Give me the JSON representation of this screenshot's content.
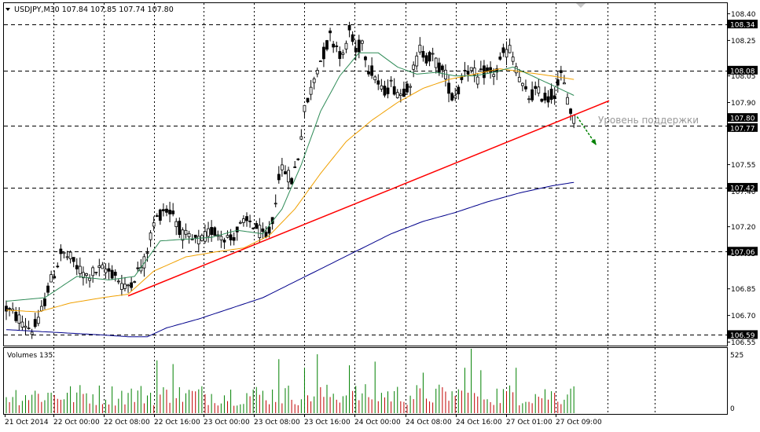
{
  "header": {
    "symbol_line": "USDJPY,M30  107.84 107.85 107.74 107.80"
  },
  "annotation": {
    "support_label": "Уровень поддержки"
  },
  "volume_panel": {
    "label": "Volumes 135",
    "max_label": "525",
    "zero_label": "0"
  },
  "colors": {
    "background": "#ffffff",
    "frame": "#000000",
    "bull": "#008000",
    "bear": "#c00000",
    "ma_fast": "#2e8b57",
    "ma_mid": "#f0a000",
    "ma_slow": "#00008b",
    "trendline": "#ff0000",
    "arrow": "#008000",
    "label_box": "#000000",
    "annotation": "#999999"
  },
  "chart_data": [
    {
      "type": "candlestick",
      "symbol": "USDJPY",
      "timeframe": "M30",
      "ohlc_header": {
        "open": 107.84,
        "high": 107.85,
        "low": 107.74,
        "close": 107.8
      },
      "ylim": [
        106.53,
        108.46
      ],
      "y_ticks": [
        "108.40",
        "108.25",
        "108.05",
        "107.90",
        "107.75",
        "107.55",
        "107.40",
        "107.20",
        "107.05",
        "106.85",
        "106.70",
        "106.55"
      ],
      "horizontal_levels": [
        "108.34",
        "108.08",
        "107.77",
        "107.42",
        "107.06",
        "106.59"
      ],
      "price_labels": [
        "108.34",
        "108.08",
        "107.80",
        "107.77",
        "107.42",
        "107.06",
        "106.59"
      ],
      "x_tick_labels": [
        "21 Oct 2014",
        "22 Oct 00:00",
        "22 Oct 08:00",
        "22 Oct 16:00",
        "23 Oct 00:00",
        "23 Oct 08:00",
        "23 Oct 16:00",
        "24 Oct 00:00",
        "24 Oct 08:00",
        "24 Oct 16:00",
        "27 Oct 01:00",
        "27 Oct 09:00"
      ],
      "price_anchors": [
        [
          0,
          106.74
        ],
        [
          4,
          106.68
        ],
        [
          8,
          106.62
        ],
        [
          10,
          106.66
        ],
        [
          13,
          106.85
        ],
        [
          15,
          106.94
        ],
        [
          17,
          107.05
        ],
        [
          20,
          107.02
        ],
        [
          22,
          106.97
        ],
        [
          25,
          106.92
        ],
        [
          28,
          106.95
        ],
        [
          31,
          106.96
        ],
        [
          34,
          106.93
        ],
        [
          37,
          106.85
        ],
        [
          40,
          106.92
        ],
        [
          43,
          107.0
        ],
        [
          46,
          107.22
        ],
        [
          49,
          107.3
        ],
        [
          52,
          107.28
        ],
        [
          55,
          107.15
        ],
        [
          58,
          107.12
        ],
        [
          61,
          107.12
        ],
        [
          64,
          107.18
        ],
        [
          67,
          107.16
        ],
        [
          70,
          107.13
        ],
        [
          73,
          107.2
        ],
        [
          76,
          107.23
        ],
        [
          79,
          107.17
        ],
        [
          81,
          107.13
        ],
        [
          83,
          107.22
        ],
        [
          85,
          107.5
        ],
        [
          87,
          107.52
        ],
        [
          89,
          107.46
        ],
        [
          91,
          107.6
        ],
        [
          93,
          107.85
        ],
        [
          95,
          107.97
        ],
        [
          97,
          108.1
        ],
        [
          99,
          108.18
        ],
        [
          101,
          108.27
        ],
        [
          103,
          108.22
        ],
        [
          105,
          108.15
        ],
        [
          107,
          108.31
        ],
        [
          109,
          108.18
        ],
        [
          111,
          108.25
        ],
        [
          113,
          108.1
        ],
        [
          115,
          108.05
        ],
        [
          117,
          107.96
        ],
        [
          120,
          108.0
        ],
        [
          123,
          107.95
        ],
        [
          126,
          108.02
        ],
        [
          129,
          108.2
        ],
        [
          131,
          108.16
        ],
        [
          133,
          108.15
        ],
        [
          135,
          108.1
        ],
        [
          137,
          108.05
        ],
        [
          139,
          107.93
        ],
        [
          141,
          107.97
        ],
        [
          143,
          108.1
        ],
        [
          145,
          108.08
        ],
        [
          147,
          108.03
        ],
        [
          149,
          108.07
        ],
        [
          151,
          108.06
        ],
        [
          153,
          108.08
        ],
        [
          155,
          108.17
        ],
        [
          157,
          108.2
        ],
        [
          159,
          108.1
        ],
        [
          161,
          107.98
        ],
        [
          163,
          107.93
        ],
        [
          165,
          107.96
        ],
        [
          167,
          107.94
        ],
        [
          169,
          107.92
        ],
        [
          171,
          107.96
        ],
        [
          173,
          108.05
        ],
        [
          175,
          107.93
        ],
        [
          176,
          107.86
        ],
        [
          177,
          107.8
        ]
      ],
      "ma_fast_anchors": [
        [
          0,
          106.78
        ],
        [
          12,
          106.8
        ],
        [
          22,
          106.92
        ],
        [
          32,
          106.9
        ],
        [
          40,
          106.92
        ],
        [
          48,
          107.12
        ],
        [
          56,
          107.13
        ],
        [
          64,
          107.14
        ],
        [
          72,
          107.18
        ],
        [
          80,
          107.16
        ],
        [
          86,
          107.3
        ],
        [
          92,
          107.55
        ],
        [
          98,
          107.85
        ],
        [
          104,
          108.05
        ],
        [
          110,
          108.18
        ],
        [
          116,
          108.18
        ],
        [
          122,
          108.1
        ],
        [
          128,
          108.06
        ],
        [
          134,
          108.07
        ],
        [
          140,
          108.05
        ],
        [
          146,
          108.05
        ],
        [
          152,
          108.07
        ],
        [
          158,
          108.1
        ],
        [
          164,
          108.05
        ],
        [
          170,
          108.0
        ],
        [
          177,
          107.94
        ]
      ],
      "ma_mid_anchors": [
        [
          0,
          106.73
        ],
        [
          10,
          106.72
        ],
        [
          20,
          106.77
        ],
        [
          30,
          106.8
        ],
        [
          38,
          106.82
        ],
        [
          46,
          106.95
        ],
        [
          56,
          107.03
        ],
        [
          66,
          107.06
        ],
        [
          74,
          107.08
        ],
        [
          82,
          107.15
        ],
        [
          90,
          107.3
        ],
        [
          98,
          107.5
        ],
        [
          106,
          107.68
        ],
        [
          114,
          107.8
        ],
        [
          122,
          107.9
        ],
        [
          130,
          107.98
        ],
        [
          138,
          108.03
        ],
        [
          146,
          108.06
        ],
        [
          154,
          108.09
        ],
        [
          162,
          108.07
        ],
        [
          170,
          108.05
        ],
        [
          177,
          108.03
        ]
      ],
      "ma_slow_anchors": [
        [
          0,
          106.62
        ],
        [
          10,
          106.61
        ],
        [
          20,
          106.6
        ],
        [
          30,
          106.59
        ],
        [
          38,
          106.58
        ],
        [
          44,
          106.58
        ],
        [
          50,
          106.63
        ],
        [
          60,
          106.68
        ],
        [
          70,
          106.74
        ],
        [
          80,
          106.8
        ],
        [
          90,
          106.89
        ],
        [
          100,
          106.98
        ],
        [
          110,
          107.07
        ],
        [
          120,
          107.16
        ],
        [
          130,
          107.23
        ],
        [
          140,
          107.28
        ],
        [
          150,
          107.34
        ],
        [
          160,
          107.39
        ],
        [
          170,
          107.43
        ],
        [
          177,
          107.45
        ]
      ],
      "trendline": {
        "from": [
          38,
          106.81
        ],
        "to": [
          188,
          107.91
        ]
      },
      "signal_arrow": {
        "from": [
          178,
          107.82
        ],
        "to": [
          184,
          107.66
        ]
      }
    },
    {
      "type": "bar",
      "title": "Volumes 135",
      "ylim": [
        0,
        525
      ],
      "bars": 178
    }
  ]
}
